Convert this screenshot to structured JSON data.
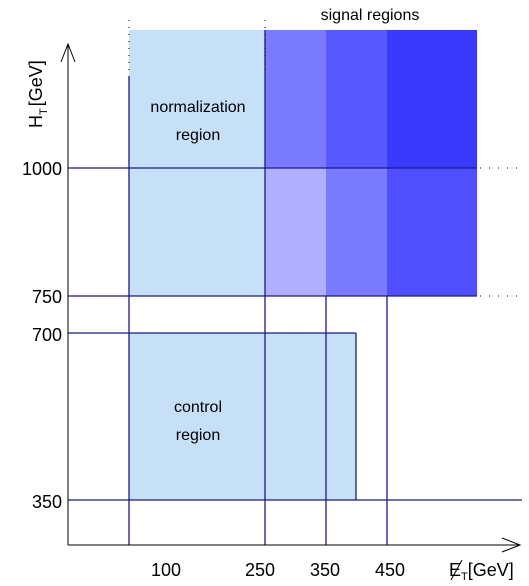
{
  "title": "signal regions",
  "axes": {
    "y_label": "H",
    "y_label_sub": "T",
    "y_label_unit": "[GeV]",
    "x_label": "E",
    "x_label_sub": "T",
    "x_label_unit": "[GeV]"
  },
  "y_ticks": [
    "1000",
    "750",
    "700",
    "350"
  ],
  "x_ticks": [
    "100",
    "250",
    "350",
    "450"
  ],
  "regions": {
    "normalization_line1": "normalization",
    "normalization_line2": "region",
    "control_line1": "control",
    "control_line2": "region"
  },
  "colors": {
    "control": "#c6e0f7",
    "signal_1": "#b0b0ff",
    "signal_2": "#7a7aff",
    "signal_3": "#4f4fff",
    "signal_4": "#3a3aff",
    "lines": "#1a1a8c"
  }
}
